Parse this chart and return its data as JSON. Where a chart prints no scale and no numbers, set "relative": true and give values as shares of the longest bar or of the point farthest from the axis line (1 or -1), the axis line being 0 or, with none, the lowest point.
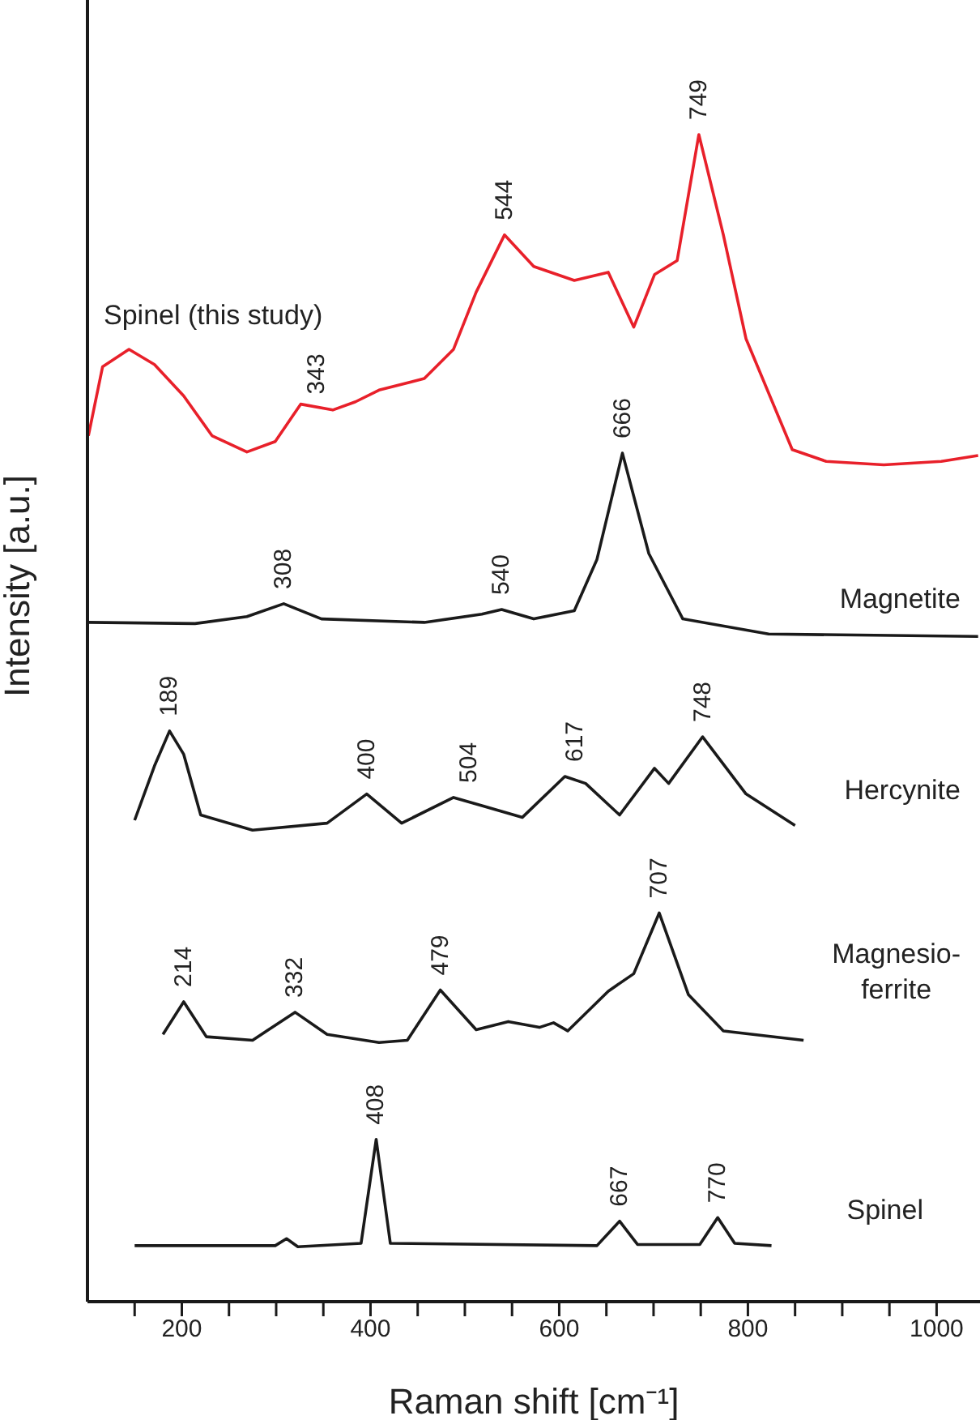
{
  "chart_data": {
    "type": "line",
    "relative": true,
    "xlabel": "Raman shift  [cm⁻¹]",
    "ylabel": "Intensity  [a.u.]",
    "xlim": [
      100,
      1046
    ],
    "xticks": [
      {
        "value": 150,
        "label": null
      },
      200,
      {
        "value": 250,
        "label": null
      },
      {
        "value": 300,
        "label": null
      },
      {
        "value": 350,
        "label": null
      },
      400,
      {
        "value": 450,
        "label": null
      },
      {
        "value": 500,
        "label": null
      },
      {
        "value": 550,
        "label": null
      },
      600,
      {
        "value": 650,
        "label": null
      },
      {
        "value": 700,
        "label": null
      },
      {
        "value": 750,
        "label": null
      },
      800,
      {
        "value": 850,
        "label": null
      },
      {
        "value": 900,
        "label": null
      },
      {
        "value": 950,
        "label": null
      },
      1000
    ],
    "series": [
      {
        "name": "Spinel (this study)",
        "color": "#e8202a",
        "x": [
          101,
          116,
          144,
          171,
          202,
          232,
          269,
          299,
          326,
          360,
          384,
          409,
          457,
          488,
          512,
          542,
          573,
          616,
          652,
          679,
          701,
          725,
          748,
          774,
          798,
          847,
          883,
          944,
          1005,
          1044
        ],
        "values": [
          0.742,
          0.801,
          0.816,
          0.803,
          0.776,
          0.742,
          0.728,
          0.737,
          0.769,
          0.764,
          0.771,
          0.781,
          0.791,
          0.816,
          0.865,
          0.914,
          0.887,
          0.875,
          0.882,
          0.835,
          0.88,
          0.892,
          1.0,
          0.914,
          0.825,
          0.73,
          0.72,
          0.717,
          0.72,
          0.725
        ]
      },
      {
        "name": "Magnetite",
        "color": "#1a1a1a",
        "x": [
          101,
          214,
          269,
          308,
          348,
          457,
          518,
          539,
          573,
          616,
          640,
          667,
          695,
          731,
          822,
          1044
        ],
        "values": [
          0.582,
          0.581,
          0.587,
          0.598,
          0.585,
          0.582,
          0.589,
          0.593,
          0.585,
          0.592,
          0.636,
          0.727,
          0.641,
          0.585,
          0.572,
          0.57
        ]
      },
      {
        "name": "Hercynite",
        "color": "#1a1a1a",
        "x": [
          150,
          171,
          187,
          202,
          220,
          275,
          354,
          396,
          433,
          488,
          518,
          561,
          606,
          628,
          664,
          701,
          716,
          752,
          798,
          850
        ],
        "values": [
          0.4125,
          0.459,
          0.489,
          0.469,
          0.417,
          0.404,
          0.41,
          0.435,
          0.41,
          0.432,
          0.425,
          0.415,
          0.45,
          0.444,
          0.417,
          0.457,
          0.444,
          0.484,
          0.435,
          0.408
        ]
      },
      {
        "name": "Magnesio-ferrite",
        "color": "#1a1a1a",
        "x": [
          180,
          202,
          226,
          275,
          320,
          354,
          409,
          439,
          474,
          512,
          546,
          579,
          594,
          609,
          652,
          679,
          706,
          737,
          774,
          859
        ],
        "values": [
          0.229,
          0.257,
          0.227,
          0.224,
          0.248,
          0.229,
          0.222,
          0.224,
          0.267,
          0.233,
          0.24,
          0.235,
          0.239,
          0.232,
          0.266,
          0.281,
          0.333,
          0.263,
          0.232,
          0.224
        ]
      },
      {
        "name": "Spinel",
        "color": "#1a1a1a",
        "x": [
          150,
          299,
          311,
          323,
          390,
          406,
          421,
          640,
          664,
          683,
          749,
          768,
          786,
          825
        ],
        "values": [
          0.048,
          0.048,
          0.054,
          0.047,
          0.05,
          0.139,
          0.05,
          0.048,
          0.069,
          0.049,
          0.049,
          0.072,
          0.05,
          0.048
        ]
      }
    ],
    "annotations": [
      {
        "text": "749",
        "x": 748,
        "y": 1.0
      },
      {
        "text": "544",
        "x": 542,
        "y": 0.914
      },
      {
        "text": "343",
        "x": 343,
        "y": 0.765
      },
      {
        "text": "666",
        "x": 667,
        "y": 0.727
      },
      {
        "text": "308",
        "x": 308,
        "y": 0.598
      },
      {
        "text": "540",
        "x": 539,
        "y": 0.593
      },
      {
        "text": "189",
        "x": 187,
        "y": 0.489
      },
      {
        "text": "400",
        "x": 396,
        "y": 0.435
      },
      {
        "text": "504",
        "x": 504,
        "y": 0.432
      },
      {
        "text": "617",
        "x": 617,
        "y": 0.45
      },
      {
        "text": "748",
        "x": 752,
        "y": 0.484
      },
      {
        "text": "214",
        "x": 202,
        "y": 0.257
      },
      {
        "text": "332",
        "x": 320,
        "y": 0.248
      },
      {
        "text": "479",
        "x": 474,
        "y": 0.267
      },
      {
        "text": "707",
        "x": 706,
        "y": 0.333
      },
      {
        "text": "408",
        "x": 406,
        "y": 0.139
      },
      {
        "text": "667",
        "x": 664,
        "y": 0.069
      },
      {
        "text": "770",
        "x": 768,
        "y": 0.072
      }
    ]
  }
}
